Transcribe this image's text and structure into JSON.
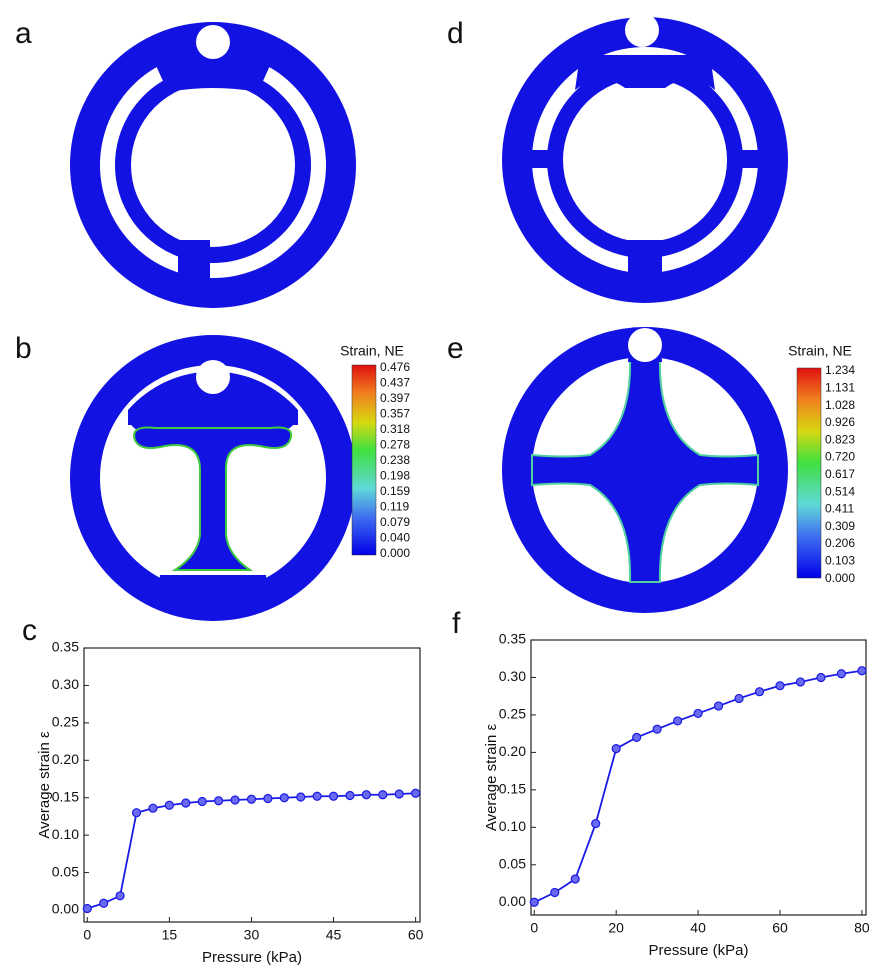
{
  "labels": [
    "a",
    "b",
    "c",
    "d",
    "e",
    "f"
  ],
  "colorbars": [
    {
      "title": "Strain, NE",
      "ticks": [
        "0.476",
        "0.437",
        "0.397",
        "0.357",
        "0.318",
        "0.278",
        "0.238",
        "0.198",
        "0.159",
        "0.119",
        "0.079",
        "0.040",
        "0.000"
      ]
    },
    {
      "title": "Strain, NE",
      "ticks": [
        "1.234",
        "1.131",
        "1.028",
        "0.926",
        "0.823",
        "0.720",
        "0.617",
        "0.514",
        "0.411",
        "0.309",
        "0.206",
        "0.103",
        "0.000"
      ]
    }
  ],
  "chart_data": [
    {
      "type": "line",
      "xlabel": "Pressure (kPa)",
      "ylabel": "Average strain ε",
      "color": "#1a1ae6",
      "x": [
        0,
        3,
        6,
        9,
        12,
        15,
        18,
        21,
        24,
        27,
        30,
        33,
        36,
        39,
        42,
        45,
        48,
        51,
        54,
        57,
        60
      ],
      "values": [
        0.002,
        0.009,
        0.019,
        0.13,
        0.136,
        0.14,
        0.143,
        0.145,
        0.146,
        0.147,
        0.148,
        0.149,
        0.15,
        0.151,
        0.152,
        0.152,
        0.153,
        0.154,
        0.154,
        0.155,
        0.156
      ],
      "xlim": [
        -0.6,
        60.8
      ],
      "ylim": [
        -0.016,
        0.35
      ],
      "xticks": [
        0,
        15,
        30,
        45,
        60
      ],
      "yticks": [
        {
          "value": 0,
          "label": "0.00"
        },
        {
          "value": 0.05,
          "label": "0.05"
        },
        {
          "value": 0.1,
          "label": "0.10"
        },
        {
          "value": 0.15,
          "label": "0.15"
        },
        {
          "value": 0.2,
          "label": "0.20"
        },
        {
          "value": 0.25,
          "label": "0.25"
        },
        {
          "value": 0.3,
          "label": "0.30"
        },
        {
          "value": 0.35,
          "label": "0.35"
        }
      ]
    },
    {
      "type": "line",
      "xlabel": "Pressure (kPa)",
      "ylabel": "Average strain ε",
      "color": "#1a1ae6",
      "x": [
        0,
        5,
        10,
        15,
        20,
        25,
        30,
        35,
        40,
        45,
        50,
        55,
        60,
        65,
        70,
        75,
        80
      ],
      "values": [
        0,
        0.013,
        0.031,
        0.105,
        0.205,
        0.22,
        0.231,
        0.242,
        0.252,
        0.262,
        0.272,
        0.281,
        0.289,
        0.294,
        0.3,
        0.305,
        0.309
      ],
      "xlim": [
        -0.8,
        81
      ],
      "ylim": [
        -0.017,
        0.35
      ],
      "xticks": [
        0,
        20,
        40,
        60,
        80
      ],
      "yticks": [
        {
          "value": 0,
          "label": "0.00"
        },
        {
          "value": 0.05,
          "label": "0.05"
        },
        {
          "value": 0.1,
          "label": "0.10"
        },
        {
          "value": 0.15,
          "label": "0.15"
        },
        {
          "value": 0.2,
          "label": "0.20"
        },
        {
          "value": 0.25,
          "label": "0.25"
        },
        {
          "value": 0.3,
          "label": "0.30"
        },
        {
          "value": 0.35,
          "label": "0.35"
        }
      ]
    }
  ]
}
